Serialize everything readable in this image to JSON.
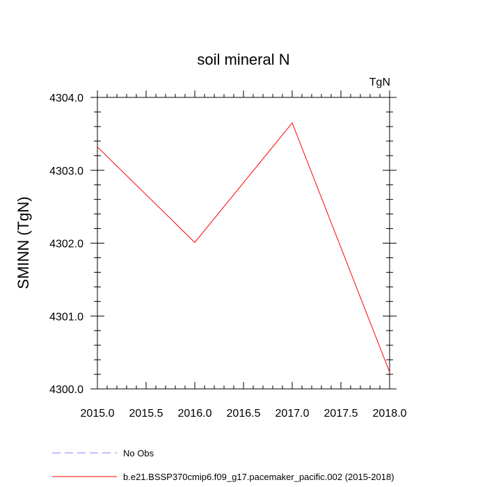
{
  "chart_data": {
    "type": "line",
    "title": "soil mineral N",
    "units_label": "TgN",
    "ylabel": "SMINN  (TgN)",
    "xlabel": "",
    "xlim": [
      2015.0,
      2018.0
    ],
    "ylim": [
      4300.0,
      4304.0
    ],
    "x_ticks": [
      "2015.0",
      "2015.5",
      "2016.0",
      "2016.5",
      "2017.0",
      "2017.5",
      "2018.0"
    ],
    "y_ticks": [
      "4300.0",
      "4301.0",
      "4302.0",
      "4303.0",
      "4304.0"
    ],
    "series": [
      {
        "name": "b.e21.BSSP370cmip6.f09_g17.pacemaker_pacific.002 (2015-2018)",
        "color": "#ff0000",
        "dash": "solid",
        "x": [
          2015,
          2016,
          2017,
          2018
        ],
        "y": [
          4303.32,
          4302.01,
          4303.65,
          4300.23
        ]
      }
    ],
    "legend": {
      "placement": "bottom-left",
      "entries": [
        {
          "label": "No Obs",
          "color": "#8080ff",
          "dash": "dashed"
        },
        {
          "label": "b.e21.BSSP370cmip6.f09_g17.pacemaker_pacific.002 (2015-2018)",
          "color": "#ff0000",
          "dash": "solid"
        }
      ]
    }
  }
}
